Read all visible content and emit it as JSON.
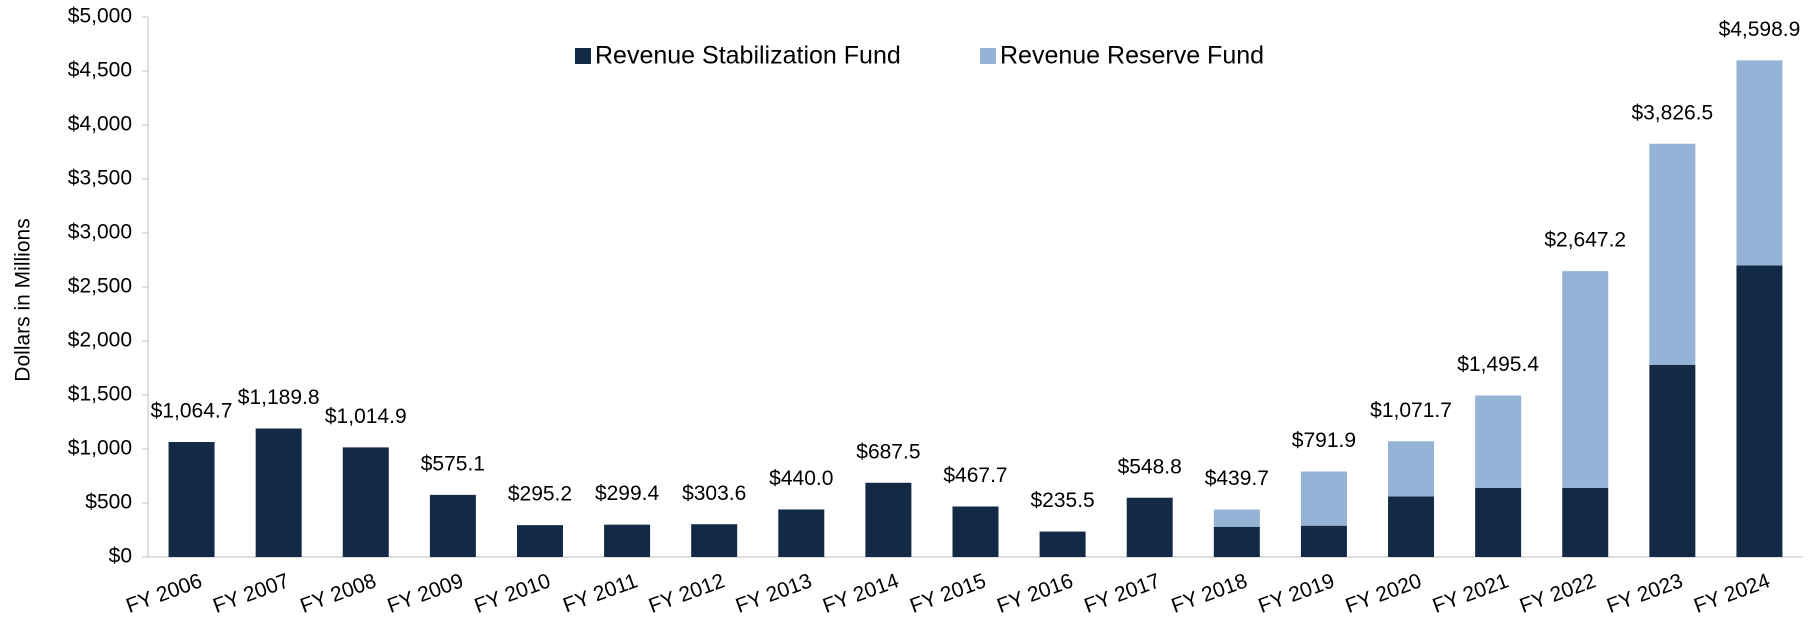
{
  "chart_data": {
    "type": "stacked-bar",
    "y_label": "Dollars in Millions",
    "categories": [
      "FY 2006",
      "FY 2007",
      "FY 2008",
      "FY 2009",
      "FY 2010",
      "FY 2011",
      "FY 2012",
      "FY 2013",
      "FY 2014",
      "FY 2015",
      "FY 2016",
      "FY 2017",
      "FY 2018",
      "FY 2019",
      "FY 2020",
      "FY 2021",
      "FY 2022",
      "FY 2023",
      "FY 2024"
    ],
    "series": [
      {
        "name": "Revenue Stabilization Fund",
        "color": "#132a47",
        "values": [
          1064.7,
          1189.8,
          1014.9,
          575.1,
          295.2,
          299.4,
          303.6,
          440.0,
          687.5,
          467.7,
          235.5,
          548.8,
          280,
          290,
          560,
          640,
          640,
          1780,
          2700
        ]
      },
      {
        "name": "Revenue Reserve Fund",
        "color": "#95b3d7",
        "values": [
          null,
          null,
          null,
          null,
          null,
          null,
          null,
          null,
          null,
          null,
          null,
          null,
          159.7,
          501.9,
          511.7,
          855.4,
          2007.2,
          2046.5,
          1898.9
        ]
      }
    ],
    "totals": [
      1064.7,
      1189.8,
      1014.9,
      575.1,
      295.2,
      299.4,
      303.6,
      440.0,
      687.5,
      467.7,
      235.5,
      548.8,
      439.7,
      791.9,
      1071.7,
      1495.4,
      2647.2,
      3826.5,
      4598.9
    ],
    "total_labels": [
      "$1,064.7",
      "$1,189.8",
      "$1,014.9",
      "$575.1",
      "$295.2",
      "$299.4",
      "$303.6",
      "$440.0",
      "$687.5",
      "$467.7",
      "$235.5",
      "$548.8",
      "$439.7",
      "$791.9",
      "$1,071.7",
      "$1,495.4",
      "$2,647.2",
      "$3,826.5",
      "$4,598.9"
    ],
    "ylim": [
      0,
      5000
    ],
    "yticks": [
      {
        "value": 0,
        "label": "$0"
      },
      {
        "value": 500,
        "label": "$500"
      },
      {
        "value": 1000,
        "label": "$1,000"
      },
      {
        "value": 1500,
        "label": "$1,500"
      },
      {
        "value": 2000,
        "label": "$2,000"
      },
      {
        "value": 2500,
        "label": "$2,500"
      },
      {
        "value": 3000,
        "label": "$3,000"
      },
      {
        "value": 3500,
        "label": "$3,500"
      },
      {
        "value": 4000,
        "label": "$4,000"
      },
      {
        "value": 4500,
        "label": "$4,500"
      },
      {
        "value": 5000,
        "label": "$5,000"
      }
    ],
    "grid": false,
    "legend": "top"
  }
}
